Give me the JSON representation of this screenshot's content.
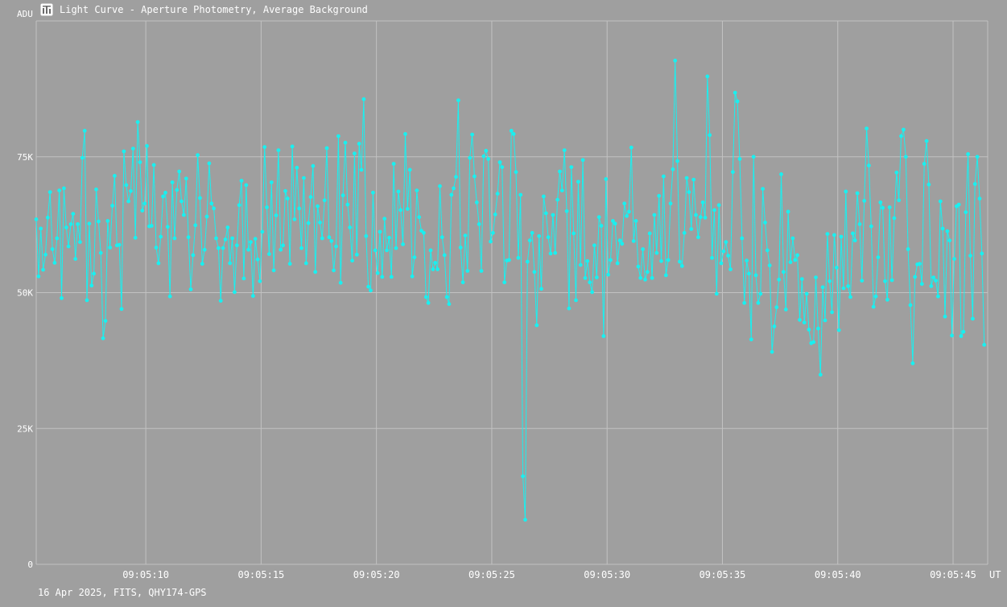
{
  "window": {
    "title": "Light Curve - Aperture Photometry, Average Background",
    "icon": "chart-icon"
  },
  "footer": {
    "text": "16 Apr 2025, FITS, QHY174-GPS"
  },
  "colors": {
    "background": "#9f9f9f",
    "grid": "#c2c2c2",
    "series": "#19f0f0",
    "text": "#ffffff"
  },
  "chart_data": {
    "type": "line",
    "title": "Light Curve - Aperture Photometry, Average Background",
    "xlabel": "UT",
    "ylabel": "ADU",
    "ylim": [
      0,
      100000
    ],
    "xlim": [
      "09:05:05.25",
      "09:05:46.5"
    ],
    "yticks": [
      {
        "value": 0,
        "label": "0"
      },
      {
        "value": 25000,
        "label": "25K"
      },
      {
        "value": 50000,
        "label": "50K"
      },
      {
        "value": 75000,
        "label": "75K"
      }
    ],
    "xticks": [
      "09:05:10",
      "09:05:15",
      "09:05:20",
      "09:05:25",
      "09:05:30",
      "09:05:35",
      "09:05:40",
      "09:05:45"
    ],
    "grid": true,
    "marker": "dot",
    "series": [
      {
        "start": "09:05:05.25",
        "step_seconds": 0.1,
        "y": [
          63500,
          53000,
          61800,
          54200,
          57000,
          63800,
          68500,
          58000,
          55500,
          60000,
          68800,
          49000,
          69200,
          62000,
          58500,
          62600,
          64500,
          56200,
          62600,
          59300,
          74800,
          79800,
          48600,
          62700,
          51300,
          53500,
          69000,
          63100,
          57300,
          41600,
          44800,
          63200,
          58300,
          66000,
          71500,
          58700,
          58800,
          47000,
          76000,
          69800,
          66800,
          68700,
          76500,
          60100,
          81400,
          74000,
          65100,
          66400,
          77000,
          62200,
          62300,
          73500,
          58300,
          55400,
          60300,
          67700,
          68400,
          62100,
          49300,
          70300,
          60000,
          68900,
          72300,
          66800,
          64300,
          71000,
          60200,
          50600,
          56900,
          62400,
          75300,
          67400,
          55300,
          57900,
          64000,
          73800,
          66400,
          65500,
          60000,
          58200,
          48500,
          58200,
          59800,
          62000,
          55400,
          60000,
          50100,
          58700,
          66100,
          70600,
          52600,
          69800,
          57900,
          59300,
          49400,
          59900,
          56100,
          52100,
          61200,
          76800,
          65700,
          57100,
          70300,
          54100,
          64200,
          76200,
          57900,
          58700,
          68700,
          67300,
          55300,
          76900,
          63500,
          73000,
          65500,
          58200,
          71100,
          55400,
          62800,
          67600,
          73300,
          53800,
          65900,
          62900,
          60000,
          67000,
          76600,
          60200,
          59500,
          54100,
          58500,
          78800,
          51800,
          67900,
          77600,
          66200,
          62000,
          55900,
          75600,
          57000,
          77400,
          72600,
          85600,
          60400,
          51100,
          50400,
          68400,
          57800,
          53600,
          61200,
          52900,
          63600,
          57800,
          60100,
          52900,
          73700,
          58200,
          68600,
          65200,
          58900,
          79200,
          65400,
          72600,
          53000,
          56500,
          68800,
          63900,
          61400,
          61000,
          49200,
          48100,
          57800,
          54300,
          55500,
          54300,
          69600,
          60200,
          56900,
          49200,
          47900,
          68000,
          69200,
          71300,
          85400,
          58300,
          51900,
          60500,
          54000,
          74800,
          79100,
          71400,
          66600,
          62600,
          54000,
          75100,
          76100,
          74600,
          59400,
          61000,
          64400,
          68200,
          74000,
          73100,
          51900,
          55900,
          56000,
          79800,
          79200,
          72200,
          56400,
          68000,
          16200,
          8200,
          55700,
          59600,
          61000,
          53800,
          44000,
          60400,
          50700,
          67700,
          64600,
          60200,
          57200,
          64300,
          57300,
          67100,
          72300,
          68800,
          76200,
          65000,
          47100,
          73100,
          60900,
          48600,
          70400,
          55100,
          74400,
          52700,
          55800,
          51900,
          50100,
          58700,
          52800,
          63900,
          62300,
          42000,
          70900,
          53300,
          56000,
          63200,
          62700,
          55400,
          59600,
          59000,
          66400,
          64100,
          64900,
          76700,
          59500,
          63200,
          54800,
          52700,
          58000,
          52400,
          53800,
          60900,
          52700,
          64300,
          57300,
          67800,
          55800,
          71400,
          53200,
          56000,
          66400,
          72700,
          92700,
          74200,
          55700,
          54900,
          61000,
          71100,
          68500,
          61700,
          70800,
          64300,
          60200,
          63900,
          66600,
          63800,
          89800,
          79000,
          56400,
          65200,
          49800,
          66100,
          55400,
          57600,
          59300,
          56800,
          54300,
          72200,
          86800,
          85200,
          74600,
          60000,
          48100,
          55900,
          53500,
          41400,
          75000,
          53200,
          48100,
          49800,
          69100,
          62900,
          57800,
          55000,
          39100,
          43800,
          47300,
          52400,
          71800,
          53800,
          46900,
          64900,
          55600,
          60000,
          56000,
          56900,
          45000,
          52500,
          44500,
          49800,
          43200,
          40700,
          40900,
          52800,
          43400,
          34900,
          51000,
          44900,
          60800,
          52100,
          46400,
          60600,
          54600,
          43100,
          60300,
          50800,
          68600,
          51200,
          49200,
          60900,
          59600,
          68300,
          62600,
          52200,
          66900,
          80200,
          73400,
          62200,
          47400,
          49300,
          56500,
          66600,
          65600,
          52100,
          48700,
          65700,
          52300,
          63700,
          72100,
          67000,
          78800,
          80000,
          75000,
          58000,
          47700,
          37000,
          52900,
          55200,
          55300,
          51600,
          73700,
          77900,
          69900,
          51200,
          52800,
          52200,
          49300,
          66800,
          61800,
          45600,
          61300,
          59600,
          42100,
          56200,
          65900,
          66200,
          42000,
          42800,
          64800,
          75500,
          56800,
          45200,
          70000,
          75000,
          67300,
          57200,
          40400
        ]
      }
    ]
  }
}
